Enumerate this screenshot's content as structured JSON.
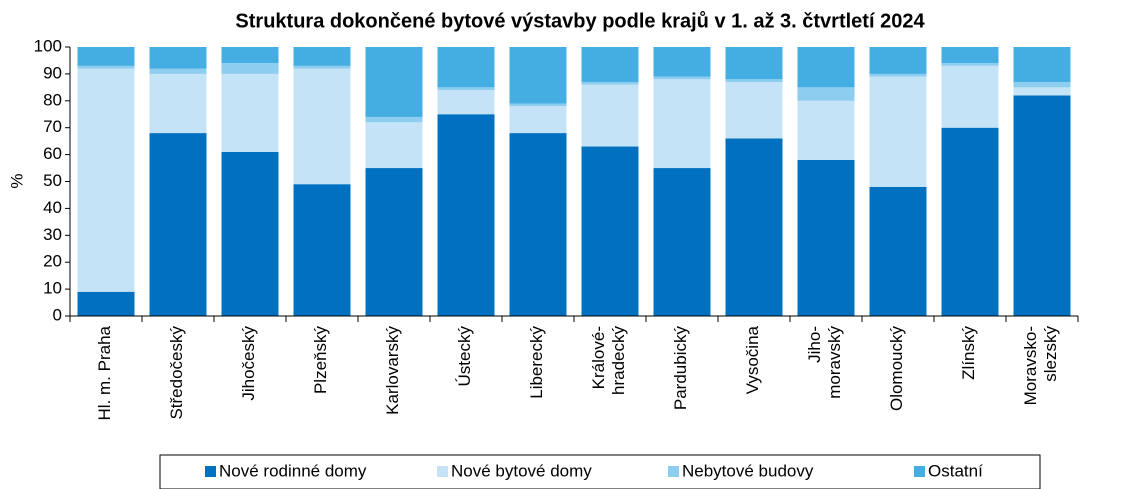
{
  "chart_data": {
    "type": "stacked_bar",
    "title": "Struktura dokončené bytové výstavby podle krajů v 1. až 3. čtvrtletí 2024",
    "y_label": "%",
    "categories": [
      "Hl. m. Praha",
      "Středočeský",
      "Jihočeský",
      "Plzeňský",
      "Karlovarský",
      "Ústecký",
      "Liberecký",
      "Králové-\nhradecký",
      "Pardubický",
      "Vysočina",
      "Jiho-\nmoravský",
      "Olomoucký",
      "Zlínský",
      "Moravsko-\nslezský"
    ],
    "series": [
      {
        "name": "Nové rodinné domy",
        "color": "#0070c0",
        "values": [
          9,
          68,
          61,
          49,
          55,
          75,
          68,
          63,
          55,
          66,
          58,
          48,
          70,
          82
        ]
      },
      {
        "name": "Nové bytové domy",
        "color": "#c5e3f6",
        "values": [
          83,
          22,
          29,
          43,
          17,
          9,
          10,
          23,
          33,
          21,
          22,
          41,
          23,
          3
        ]
      },
      {
        "name": "Nebytové budovy",
        "color": "#8dcdf0",
        "values": [
          1,
          2,
          4,
          1,
          2,
          1,
          1,
          1,
          1,
          1,
          5,
          1,
          1,
          2
        ]
      },
      {
        "name": "Ostatní",
        "color": "#44ade2",
        "values": [
          7,
          8,
          6,
          7,
          26,
          15,
          21,
          13,
          11,
          12,
          15,
          10,
          6,
          13
        ]
      }
    ],
    "ylim": [
      0,
      100
    ],
    "yticks": [
      0,
      10,
      20,
      30,
      40,
      50,
      60,
      70,
      80,
      90,
      100
    ],
    "legend": "bottom"
  }
}
